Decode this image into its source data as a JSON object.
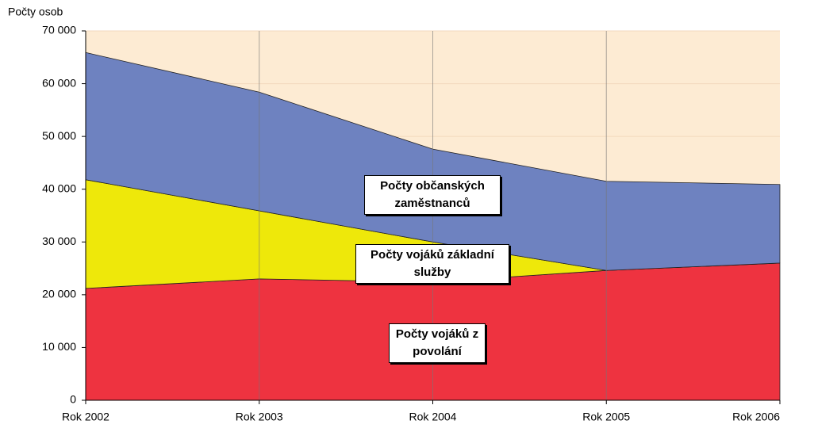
{
  "chart_data": {
    "type": "stacked_area",
    "y_axis_label": "Počty osob",
    "categories": [
      "Rok 2002",
      "Rok 2003",
      "Rok 2004",
      "Rok 2005",
      "Rok 2006"
    ],
    "series": [
      {
        "name": "Počty vojáků z povolání",
        "color": "#ee3340",
        "values": [
          21200,
          23000,
          22400,
          24600,
          26000
        ]
      },
      {
        "name": "Počty vojáků základní služby",
        "color": "#eee80a",
        "values": [
          20600,
          12900,
          7600,
          0,
          0
        ]
      },
      {
        "name": "Počty občanských zaměstnanců",
        "color": "#6e82c0",
        "values": [
          24100,
          22500,
          17600,
          16900,
          14900
        ]
      }
    ],
    "ylim": [
      0,
      70000
    ],
    "yticks": [
      {
        "value": 0,
        "label": "0"
      },
      {
        "value": 10000,
        "label": "10 000"
      },
      {
        "value": 20000,
        "label": "20 000"
      },
      {
        "value": 30000,
        "label": "30 000"
      },
      {
        "value": 40000,
        "label": "40 000"
      },
      {
        "value": 50000,
        "label": "50 000"
      },
      {
        "value": 60000,
        "label": "60 000"
      },
      {
        "value": 70000,
        "label": "70 000"
      }
    ],
    "grid": true
  }
}
